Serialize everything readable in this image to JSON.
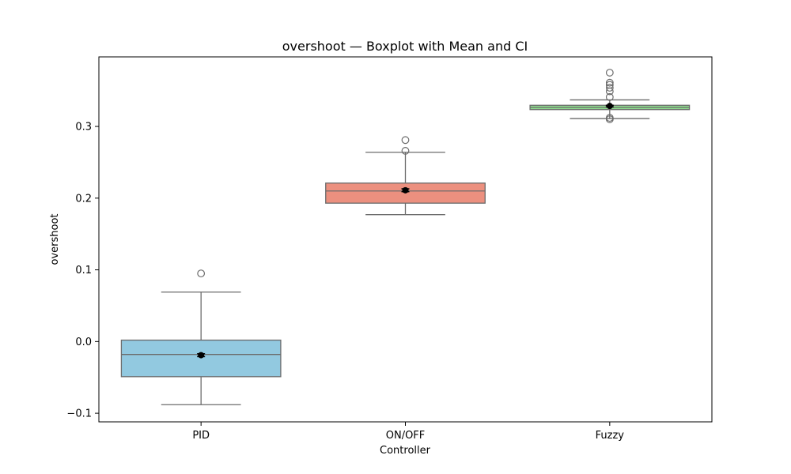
{
  "chart_data": {
    "type": "boxplot",
    "title": "overshoot — Boxplot with Mean and CI",
    "xlabel": "Controller",
    "ylabel": "overshoot",
    "categories": [
      "PID",
      "ON/OFF",
      "Fuzzy"
    ],
    "ylim": [
      -0.112,
      0.397
    ],
    "yticks": [
      -0.1,
      0.0,
      0.1,
      0.2,
      0.3
    ],
    "ytick_labels": [
      "−0.1",
      "0.0",
      "0.1",
      "0.2",
      "0.3"
    ],
    "grid": false,
    "colors": {
      "PID": "#92c9e0",
      "ON/OFF": "#ec907f",
      "Fuzzy": "#8fdf8e",
      "box_edge": "#6b6b6b",
      "mean_marker": "#000000"
    },
    "boxes": [
      {
        "name": "PID",
        "whisker_low": -0.088,
        "q1": -0.049,
        "median": -0.018,
        "q3": 0.002,
        "whisker_high": 0.069,
        "outliers": [
          0.095
        ],
        "mean": -0.019,
        "ci": [
          -0.021,
          -0.017
        ]
      },
      {
        "name": "ON/OFF",
        "whisker_low": 0.177,
        "q1": 0.193,
        "median": 0.21,
        "q3": 0.221,
        "whisker_high": 0.264,
        "outliers": [
          0.266,
          0.281
        ],
        "mean": 0.211,
        "ci": [
          0.209,
          0.213
        ]
      },
      {
        "name": "Fuzzy",
        "whisker_low": 0.311,
        "q1": 0.3235,
        "median": 0.3265,
        "q3": 0.3295,
        "whisker_high": 0.337,
        "outliers": [
          0.31,
          0.312,
          0.341,
          0.349,
          0.354,
          0.358,
          0.361,
          0.375
        ],
        "mean": 0.3285,
        "ci": [
          0.3275,
          0.3295
        ]
      }
    ]
  }
}
